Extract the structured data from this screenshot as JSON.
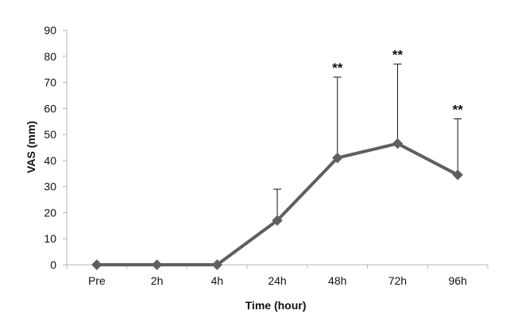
{
  "chart_data": {
    "type": "line",
    "title": "",
    "xlabel": "Time (hour)",
    "ylabel": "VAS (mm)",
    "ylim": [
      0,
      90
    ],
    "yticks": [
      0,
      10,
      20,
      30,
      40,
      50,
      60,
      70,
      80,
      90
    ],
    "grid": false,
    "legend": "none",
    "categories": [
      "Pre",
      "2h",
      "4h",
      "24h",
      "48h",
      "72h",
      "96h"
    ],
    "series": [
      {
        "values": [
          0,
          0,
          0,
          17,
          41,
          46.5,
          34.5
        ],
        "error_upper": [
          0,
          0,
          0,
          29,
          72,
          77,
          56
        ],
        "color": "#5f5f5f"
      }
    ],
    "annotations": [
      "",
      "",
      "",
      "",
      "**",
      "**",
      "**"
    ]
  }
}
